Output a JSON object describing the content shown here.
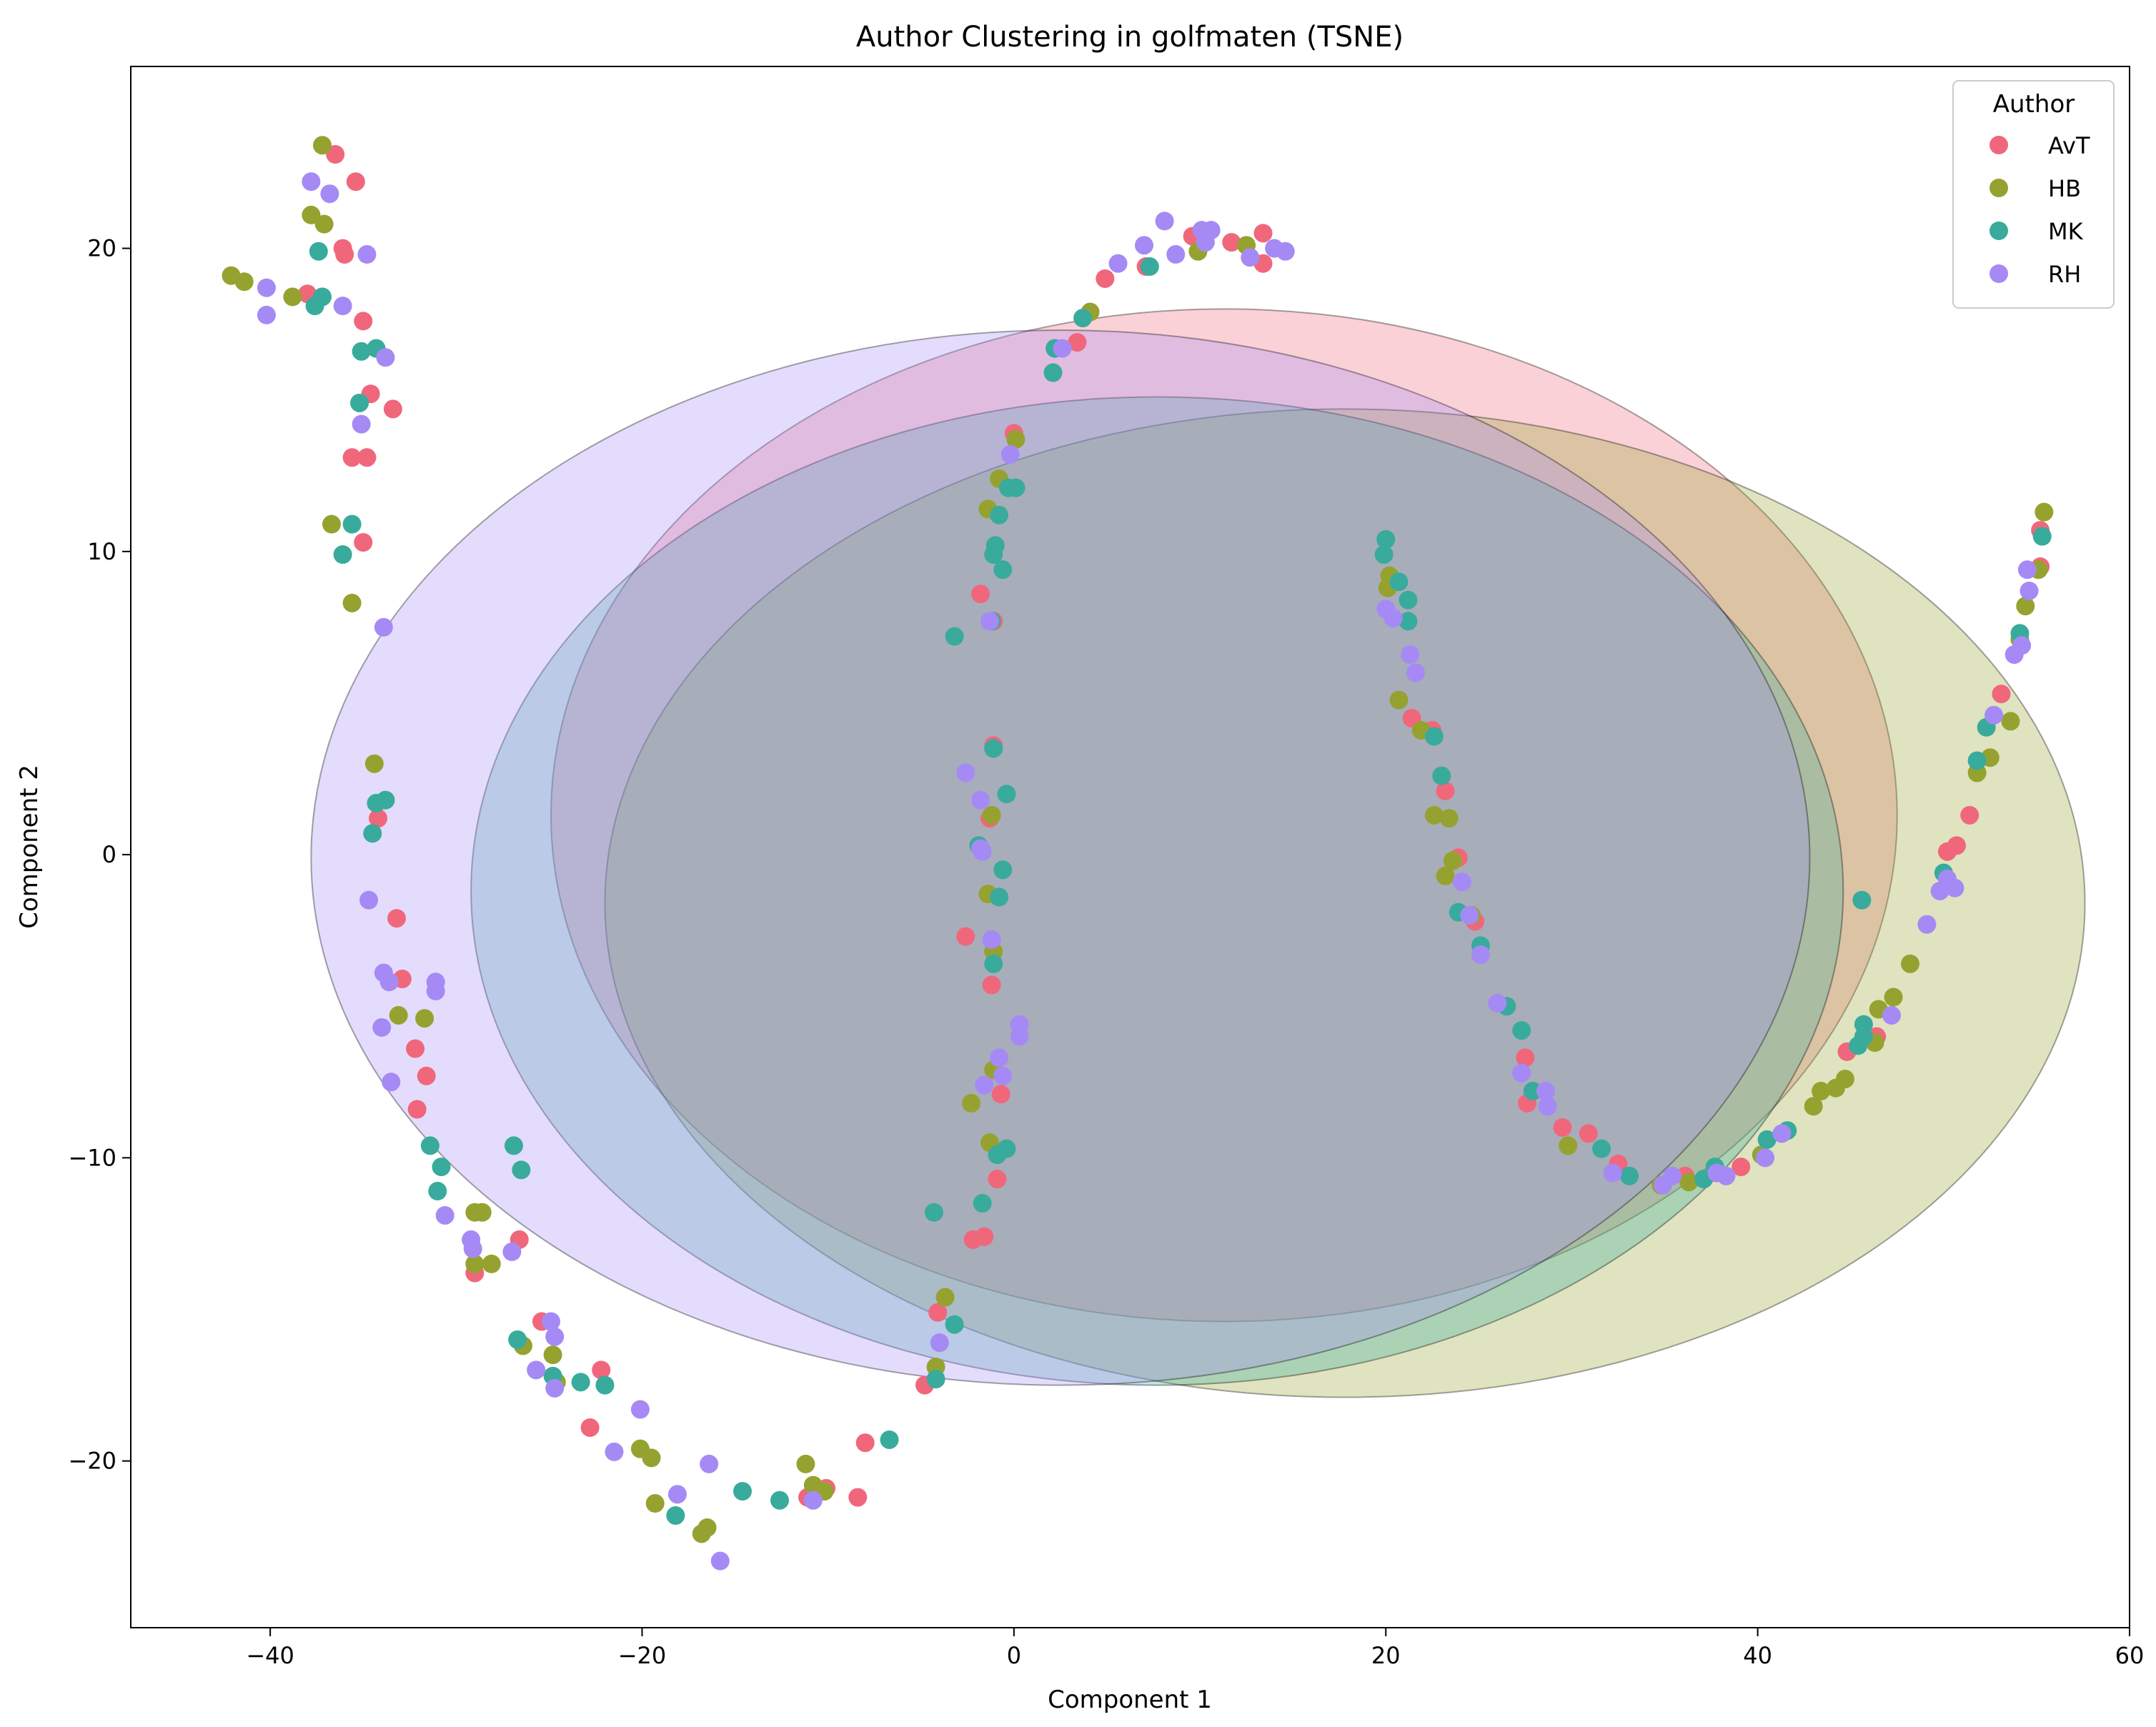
{
  "chart_data": {
    "type": "scatter",
    "title": "Author Clustering in golfmaten (TSNE)",
    "xlabel": "Component 1",
    "ylabel": "Component 2",
    "xlim": [
      -47.5,
      60
    ],
    "ylim": [
      -25.5,
      26
    ],
    "xticks": [
      -40,
      -20,
      0,
      20,
      40,
      60
    ],
    "yticks": [
      -20,
      -10,
      0,
      10,
      20
    ],
    "grid": false,
    "legend": {
      "title": "Author",
      "placement": "top-right"
    },
    "series": [
      {
        "name": "AvT",
        "color": "#f0677c",
        "ellipse": {
          "cx": 11.3,
          "cy": 1.3,
          "rx": 36.2,
          "ry": 16.7,
          "opacity": 0.3
        },
        "points": [
          [
            -38,
            18.5
          ],
          [
            -36.5,
            23.1
          ],
          [
            -36.1,
            20
          ],
          [
            -36,
            19.8
          ],
          [
            -35.4,
            22.2
          ],
          [
            -35,
            17.6
          ],
          [
            -35.6,
            13.1
          ],
          [
            -34.8,
            13.1
          ],
          [
            -34.6,
            15.2
          ],
          [
            -33.4,
            14.7
          ],
          [
            -35,
            10.3
          ],
          [
            -34.2,
            1.2
          ],
          [
            -33.2,
            -2.1
          ],
          [
            -32.9,
            -4.1
          ],
          [
            -32.2,
            -6.4
          ],
          [
            -31.6,
            -7.3
          ],
          [
            -32.1,
            -8.4
          ],
          [
            -29,
            -13.8
          ],
          [
            -26.6,
            -12.7
          ],
          [
            -25.4,
            -15.4
          ],
          [
            -22.2,
            -17
          ],
          [
            -22.8,
            -18.9
          ],
          [
            -11.1,
            -21.2
          ],
          [
            -10.1,
            -20.9
          ],
          [
            -8.4,
            -21.2
          ],
          [
            -8,
            -19.4
          ],
          [
            -4.8,
            -17.5
          ],
          [
            -4.1,
            -15.1
          ],
          [
            -2.2,
            -12.7
          ],
          [
            -1.6,
            -12.6
          ],
          [
            -2.6,
            -2.7
          ],
          [
            -1.2,
            -4.3
          ],
          [
            -1.1,
            3.6
          ],
          [
            -1.3,
            1.2
          ],
          [
            -1.8,
            8.6
          ],
          [
            -1.1,
            7.7
          ],
          [
            0,
            13.9
          ],
          [
            3.4,
            16.9
          ],
          [
            4.9,
            19
          ],
          [
            7.1,
            19.4
          ],
          [
            9.6,
            20.4
          ],
          [
            11.7,
            20.2
          ],
          [
            13.4,
            20.5
          ],
          [
            13.4,
            19.5
          ],
          [
            -0.7,
            -7.9
          ],
          [
            -0.9,
            -10.7
          ],
          [
            21.4,
            4.5
          ],
          [
            22.5,
            4.1
          ],
          [
            23.2,
            2.1
          ],
          [
            23.9,
            -0.1
          ],
          [
            24.8,
            -2.2
          ],
          [
            27.5,
            -6.7
          ],
          [
            27.6,
            -8.2
          ],
          [
            29.5,
            -9
          ],
          [
            30.9,
            -9.2
          ],
          [
            32.5,
            -10.2
          ],
          [
            36.1,
            -10.6
          ],
          [
            39.1,
            -10.3
          ],
          [
            44.8,
            -6.5
          ],
          [
            46.4,
            -6
          ],
          [
            50.2,
            0.1
          ],
          [
            50.7,
            0.3
          ],
          [
            51.4,
            1.3
          ],
          [
            53.1,
            5.3
          ],
          [
            55.2,
            9.5
          ],
          [
            55.2,
            10.7
          ]
        ]
      },
      {
        "name": "HB",
        "color": "#96a22f",
        "ellipse": {
          "cx": 17.8,
          "cy": -1.6,
          "rx": 39.8,
          "ry": 16.3,
          "opacity": 0.3
        },
        "points": [
          [
            -42.1,
            19.1
          ],
          [
            -41.4,
            18.9
          ],
          [
            -38.8,
            18.4
          ],
          [
            -37.8,
            21.1
          ],
          [
            -37.1,
            20.8
          ],
          [
            -37.2,
            23.4
          ],
          [
            -36.7,
            10.9
          ],
          [
            -35.6,
            8.3
          ],
          [
            -34.4,
            3
          ],
          [
            -33.1,
            -5.3
          ],
          [
            -31.7,
            -5.4
          ],
          [
            -29,
            -11.8
          ],
          [
            -28.6,
            -11.8
          ],
          [
            -29,
            -13.5
          ],
          [
            -28.1,
            -13.5
          ],
          [
            -26.4,
            -16.2
          ],
          [
            -24.8,
            -16.5
          ],
          [
            -24.6,
            -17.4
          ],
          [
            -20.1,
            -19.6
          ],
          [
            -19.5,
            -19.9
          ],
          [
            -19.3,
            -21.4
          ],
          [
            -16.8,
            -22.4
          ],
          [
            -16.5,
            -22.2
          ],
          [
            -11.2,
            -20.1
          ],
          [
            -10.8,
            -20.8
          ],
          [
            -10.2,
            -21
          ],
          [
            -4.2,
            -16.9
          ],
          [
            -3.7,
            -14.6
          ],
          [
            -2.3,
            -8.2
          ],
          [
            -1.4,
            -1.3
          ],
          [
            -1.2,
            1.3
          ],
          [
            -1.1,
            -3.2
          ],
          [
            -1.3,
            -9.5
          ],
          [
            -1.1,
            -7.1
          ],
          [
            -1.4,
            11.4
          ],
          [
            -0.8,
            12.4
          ],
          [
            0.1,
            13.7
          ],
          [
            4.1,
            17.9
          ],
          [
            9.9,
            19.9
          ],
          [
            12.5,
            20.1
          ],
          [
            20.2,
            9.2
          ],
          [
            20.1,
            8.8
          ],
          [
            20.7,
            5.1
          ],
          [
            21.9,
            4.1
          ],
          [
            22.6,
            1.3
          ],
          [
            23.4,
            1.2
          ],
          [
            23.2,
            -0.7
          ],
          [
            23.6,
            -0.2
          ],
          [
            24.6,
            -2
          ],
          [
            29.8,
            -9.6
          ],
          [
            34.8,
            -10.9
          ],
          [
            36.3,
            -10.8
          ],
          [
            40.2,
            -9.9
          ],
          [
            43,
            -8.3
          ],
          [
            43.4,
            -7.8
          ],
          [
            44.2,
            -7.7
          ],
          [
            44.7,
            -7.4
          ],
          [
            46.5,
            -5.1
          ],
          [
            46.3,
            -6.2
          ],
          [
            47.3,
            -4.7
          ],
          [
            48.2,
            -3.6
          ],
          [
            52.5,
            3.2
          ],
          [
            51.8,
            2.7
          ],
          [
            53.6,
            4.4
          ],
          [
            54.1,
            7.1
          ],
          [
            54.4,
            8.2
          ],
          [
            55.1,
            9.4
          ],
          [
            55.4,
            11.3
          ]
        ]
      },
      {
        "name": "MK",
        "color": "#38ab9c",
        "ellipse": {
          "cx": 7.7,
          "cy": -1.2,
          "rx": 36.9,
          "ry": 16.3,
          "opacity": 0.3
        },
        "points": [
          [
            -37.6,
            18.1
          ],
          [
            -37.2,
            18.4
          ],
          [
            -37.4,
            19.9
          ],
          [
            -35.1,
            16.6
          ],
          [
            -34.3,
            16.7
          ],
          [
            -35.2,
            14.9
          ],
          [
            -35.6,
            10.9
          ],
          [
            -36.1,
            9.9
          ],
          [
            -34.5,
            0.7
          ],
          [
            -34.3,
            1.7
          ],
          [
            -33.8,
            1.8
          ],
          [
            -31.4,
            -9.6
          ],
          [
            -31,
            -11.1
          ],
          [
            -30.8,
            -10.3
          ],
          [
            -26.9,
            -9.6
          ],
          [
            -26.5,
            -10.4
          ],
          [
            -26.7,
            -16
          ],
          [
            -24.8,
            -17.2
          ],
          [
            -23.3,
            -17.4
          ],
          [
            -22,
            -17.5
          ],
          [
            -18.2,
            -21.8
          ],
          [
            -14.6,
            -21
          ],
          [
            -12.6,
            -21.3
          ],
          [
            -6.7,
            -19.3
          ],
          [
            -4.3,
            -11.8
          ],
          [
            -4.2,
            -17.3
          ],
          [
            -3.2,
            -15.5
          ],
          [
            -3.2,
            7.2
          ],
          [
            -1.9,
            0.3
          ],
          [
            -1.7,
            -11.5
          ],
          [
            -1.1,
            3.5
          ],
          [
            -1.1,
            9.9
          ],
          [
            -1.2,
            7.7
          ],
          [
            -1,
            10.2
          ],
          [
            -1.1,
            -3.6
          ],
          [
            -0.8,
            -1.4
          ],
          [
            -0.8,
            11.2
          ],
          [
            -0.6,
            -0.5
          ],
          [
            -0.4,
            2
          ],
          [
            -0.6,
            9.4
          ],
          [
            -0.9,
            -9.9
          ],
          [
            -0.4,
            -9.7
          ],
          [
            -0.3,
            12.1
          ],
          [
            0.1,
            12.1
          ],
          [
            2.1,
            15.9
          ],
          [
            2.2,
            16.7
          ],
          [
            3.7,
            17.7
          ],
          [
            7.3,
            19.4
          ],
          [
            19.9,
            9.9
          ],
          [
            20,
            10.4
          ],
          [
            20.7,
            9
          ],
          [
            21.2,
            8.4
          ],
          [
            21.2,
            7.7
          ],
          [
            22.6,
            3.9
          ],
          [
            23,
            2.6
          ],
          [
            23.9,
            -1.9
          ],
          [
            25.1,
            -3
          ],
          [
            26.5,
            -5
          ],
          [
            27.3,
            -5.8
          ],
          [
            27.9,
            -7.8
          ],
          [
            31.6,
            -9.7
          ],
          [
            33.1,
            -10.6
          ],
          [
            37.1,
            -10.7
          ],
          [
            37.7,
            -10.3
          ],
          [
            40.5,
            -9.4
          ],
          [
            41.6,
            -9.1
          ],
          [
            45.4,
            -6.3
          ],
          [
            45.7,
            -6
          ],
          [
            45.7,
            -5.6
          ],
          [
            45.6,
            -1.5
          ],
          [
            50,
            -0.6
          ],
          [
            51.8,
            3.1
          ],
          [
            52.3,
            4.2
          ],
          [
            54.1,
            7.3
          ],
          [
            55.3,
            10.5
          ]
        ]
      },
      {
        "name": "RH",
        "color": "#a58af5",
        "ellipse": {
          "cx": 2.5,
          "cy": -0.1,
          "rx": 40.3,
          "ry": 17.4,
          "opacity": 0.3
        },
        "points": [
          [
            -40.2,
            18.7
          ],
          [
            -40.2,
            17.8
          ],
          [
            -37.8,
            22.2
          ],
          [
            -36.8,
            21.8
          ],
          [
            -36.1,
            18.1
          ],
          [
            -34.8,
            19.8
          ],
          [
            -35.1,
            14.2
          ],
          [
            -33.8,
            16.4
          ],
          [
            -33.9,
            7.5
          ],
          [
            -34.7,
            -1.5
          ],
          [
            -33.9,
            -3.9
          ],
          [
            -33.6,
            -4.2
          ],
          [
            -34,
            -5.7
          ],
          [
            -33.5,
            -7.5
          ],
          [
            -31.1,
            -4.5
          ],
          [
            -31.1,
            -4.2
          ],
          [
            -30.6,
            -11.9
          ],
          [
            -29.2,
            -12.7
          ],
          [
            -29.1,
            -13
          ],
          [
            -27,
            -13.1
          ],
          [
            -25.7,
            -17
          ],
          [
            -24.9,
            -15.4
          ],
          [
            -24.7,
            -15.9
          ],
          [
            -24.7,
            -17.6
          ],
          [
            -21.5,
            -19.7
          ],
          [
            -20.1,
            -18.3
          ],
          [
            -18.1,
            -21.1
          ],
          [
            -16.4,
            -20.1
          ],
          [
            -15.8,
            -23.3
          ],
          [
            -10.8,
            -21.3
          ],
          [
            -4,
            -16.1
          ],
          [
            -2.6,
            2.7
          ],
          [
            -1.8,
            1.8
          ],
          [
            -1.8,
            0.2
          ],
          [
            -1.7,
            0.1
          ],
          [
            -1.6,
            -7.6
          ],
          [
            -1.2,
            -2.8
          ],
          [
            -1.3,
            7.7
          ],
          [
            -0.8,
            -6.7
          ],
          [
            -0.6,
            -7.3
          ],
          [
            0.3,
            -5.6
          ],
          [
            0.3,
            -6
          ],
          [
            -0.2,
            13.2
          ],
          [
            2.6,
            16.7
          ],
          [
            5.6,
            19.5
          ],
          [
            7,
            20.1
          ],
          [
            8.1,
            20.9
          ],
          [
            8.7,
            19.8
          ],
          [
            10.6,
            20.6
          ],
          [
            10.3,
            20.2
          ],
          [
            10.1,
            20.6
          ],
          [
            12.7,
            19.7
          ],
          [
            14,
            20
          ],
          [
            14.6,
            19.9
          ],
          [
            20,
            8.1
          ],
          [
            20.4,
            7.8
          ],
          [
            21.3,
            6.6
          ],
          [
            21.6,
            6
          ],
          [
            24.1,
            -0.9
          ],
          [
            24.5,
            -2
          ],
          [
            25.1,
            -3.3
          ],
          [
            26,
            -4.9
          ],
          [
            27.3,
            -7.2
          ],
          [
            28.6,
            -7.8
          ],
          [
            28.7,
            -8.3
          ],
          [
            32.2,
            -10.5
          ],
          [
            34.9,
            -10.9
          ],
          [
            35.4,
            -10.6
          ],
          [
            37.8,
            -10.5
          ],
          [
            38.3,
            -10.6
          ],
          [
            40.4,
            -10
          ],
          [
            41.3,
            -9.2
          ],
          [
            47.2,
            -5.3
          ],
          [
            49.1,
            -2.3
          ],
          [
            49.8,
            -1.2
          ],
          [
            50.2,
            -0.8
          ],
          [
            50.6,
            -1.1
          ],
          [
            52.7,
            4.6
          ],
          [
            53.8,
            6.6
          ],
          [
            54.2,
            6.9
          ],
          [
            54.6,
            8.7
          ],
          [
            54.5,
            9.4
          ]
        ]
      }
    ]
  }
}
